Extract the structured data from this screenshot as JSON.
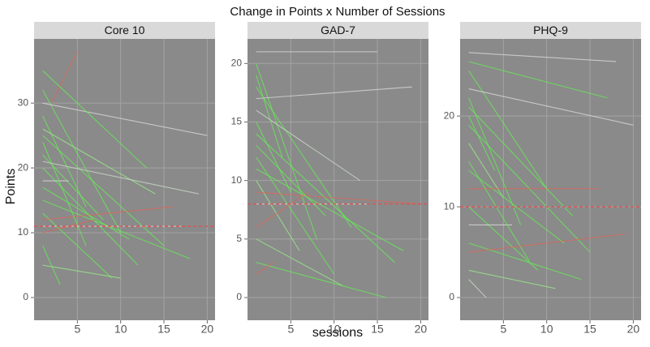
{
  "title": "Change in Points x Number of Sessions",
  "x_label": "sessions",
  "y_label": "Points",
  "chart_data": [
    {
      "type": "line",
      "title": "Core 10",
      "xlim": [
        0,
        20.9
      ],
      "ylim": [
        -3.5,
        39.9
      ],
      "xticks": [
        5,
        10,
        15,
        20
      ],
      "yticks": [
        0,
        10,
        20,
        30
      ],
      "grid": true,
      "threshold": 11,
      "threshold_color": "#e05050",
      "series": [
        {
          "color": "#66ee55",
          "x": [
            1,
            10
          ],
          "values": [
            32,
            10
          ]
        },
        {
          "color": "#66ee55",
          "x": [
            1,
            6
          ],
          "values": [
            28,
            14
          ]
        },
        {
          "color": "#66ee55",
          "x": [
            1,
            15
          ],
          "values": [
            25,
            8
          ]
        },
        {
          "color": "#66ee55",
          "x": [
            1,
            8
          ],
          "values": [
            22,
            12
          ]
        },
        {
          "color": "#dddddd",
          "x": [
            1,
            20
          ],
          "values": [
            30,
            25
          ]
        },
        {
          "color": "#66ee55",
          "x": [
            1,
            12
          ],
          "values": [
            20,
            5
          ]
        },
        {
          "color": "#dddddd",
          "x": [
            1,
            4
          ],
          "values": [
            18,
            18
          ]
        },
        {
          "color": "#66ee55",
          "x": [
            1,
            18
          ],
          "values": [
            15,
            6
          ]
        },
        {
          "color": "#66ee55",
          "x": [
            1,
            9
          ],
          "values": [
            13,
            3
          ]
        },
        {
          "color": "#99ee88",
          "x": [
            1,
            14
          ],
          "values": [
            26,
            16
          ]
        },
        {
          "color": "#dd6655",
          "x": [
            1,
            7
          ],
          "values": [
            10,
            12
          ]
        },
        {
          "color": "#dd6655",
          "x": [
            2,
            5
          ],
          "values": [
            30,
            38
          ]
        },
        {
          "color": "#dd6655",
          "x": [
            1,
            16
          ],
          "values": [
            12,
            14
          ]
        },
        {
          "color": "#66ee55",
          "x": [
            1,
            11
          ],
          "values": [
            17,
            9
          ]
        },
        {
          "color": "#ccddcc",
          "x": [
            1,
            19
          ],
          "values": [
            21,
            16
          ]
        },
        {
          "color": "#66ee55",
          "x": [
            1,
            3
          ],
          "values": [
            8,
            2
          ]
        },
        {
          "color": "#66ee55",
          "x": [
            1,
            13
          ],
          "values": [
            35,
            20
          ]
        },
        {
          "color": "#66ee55",
          "x": [
            1,
            6
          ],
          "values": [
            24,
            8
          ]
        },
        {
          "color": "#dddddd",
          "x": [
            1,
            17
          ],
          "values": [
            11,
            11
          ]
        },
        {
          "color": "#99ee88",
          "x": [
            1,
            10
          ],
          "values": [
            5,
            3
          ]
        }
      ]
    },
    {
      "type": "line",
      "title": "GAD-7",
      "xlim": [
        0,
        20.9
      ],
      "ylim": [
        -1.94,
        22.1
      ],
      "xticks": [
        5,
        10,
        15,
        20
      ],
      "yticks": [
        0,
        5,
        10,
        15,
        20
      ],
      "grid": true,
      "threshold": 8,
      "threshold_color": "#e05050",
      "series": [
        {
          "color": "#dddddd",
          "x": [
            1,
            15
          ],
          "values": [
            21,
            21
          ]
        },
        {
          "color": "#66ee55",
          "x": [
            1,
            8
          ],
          "values": [
            20,
            5
          ]
        },
        {
          "color": "#66ee55",
          "x": [
            1,
            12
          ],
          "values": [
            18,
            6
          ]
        },
        {
          "color": "#66ee55",
          "x": [
            1,
            5
          ],
          "values": [
            15,
            9
          ]
        },
        {
          "color": "#dddddd",
          "x": [
            1,
            19
          ],
          "values": [
            17,
            18
          ]
        },
        {
          "color": "#66ee55",
          "x": [
            1,
            10
          ],
          "values": [
            12,
            2
          ]
        },
        {
          "color": "#99ee88",
          "x": [
            1,
            6
          ],
          "values": [
            10,
            4
          ]
        },
        {
          "color": "#dddddd",
          "x": [
            1,
            14
          ],
          "values": [
            8,
            8
          ]
        },
        {
          "color": "#dd6655",
          "x": [
            1,
            7
          ],
          "values": [
            6,
            9
          ]
        },
        {
          "color": "#66ee55",
          "x": [
            1,
            17
          ],
          "values": [
            14,
            3
          ]
        },
        {
          "color": "#66ee55",
          "x": [
            1,
            4
          ],
          "values": [
            19,
            12
          ]
        },
        {
          "color": "#99ee88",
          "x": [
            1,
            11
          ],
          "values": [
            5,
            1
          ]
        },
        {
          "color": "#66ee55",
          "x": [
            1,
            9
          ],
          "values": [
            13,
            7
          ]
        },
        {
          "color": "#66ee55",
          "x": [
            1,
            16
          ],
          "values": [
            3,
            0
          ]
        },
        {
          "color": "#dd6655",
          "x": [
            1,
            20
          ],
          "values": [
            9,
            8
          ]
        },
        {
          "color": "#ccddcc",
          "x": [
            1,
            13
          ],
          "values": [
            16,
            10
          ]
        },
        {
          "color": "#dd6655",
          "x": [
            1,
            3
          ],
          "values": [
            2,
            3
          ]
        },
        {
          "color": "#66ee55",
          "x": [
            1,
            18
          ],
          "values": [
            11,
            4
          ]
        }
      ]
    },
    {
      "type": "line",
      "title": "PHQ-9",
      "xlim": [
        0,
        20.9
      ],
      "ylim": [
        -2.5,
        28.5
      ],
      "xticks": [
        5,
        10,
        15,
        20
      ],
      "yticks": [
        0,
        10,
        20
      ],
      "grid": true,
      "threshold": 10,
      "threshold_color": "#e05050",
      "series": [
        {
          "color": "#dddddd",
          "x": [
            1,
            18
          ],
          "values": [
            27,
            26
          ]
        },
        {
          "color": "#66ee55",
          "x": [
            1,
            10
          ],
          "values": [
            25,
            12
          ]
        },
        {
          "color": "#66ee55",
          "x": [
            1,
            7
          ],
          "values": [
            22,
            8
          ]
        },
        {
          "color": "#66ee55",
          "x": [
            1,
            15
          ],
          "values": [
            19,
            5
          ]
        },
        {
          "color": "#99ee88",
          "x": [
            1,
            5
          ],
          "values": [
            17,
            11
          ]
        },
        {
          "color": "#66ee55",
          "x": [
            1,
            12
          ],
          "values": [
            14,
            6
          ]
        },
        {
          "color": "#dddddd",
          "x": [
            1,
            20
          ],
          "values": [
            23,
            19
          ]
        },
        {
          "color": "#66ee55",
          "x": [
            1,
            9
          ],
          "values": [
            10,
            3
          ]
        },
        {
          "color": "#dddddd",
          "x": [
            1,
            6
          ],
          "values": [
            8,
            8
          ]
        },
        {
          "color": "#66ee55",
          "x": [
            1,
            14
          ],
          "values": [
            6,
            2
          ]
        },
        {
          "color": "#66ee55",
          "x": [
            1,
            4
          ],
          "values": [
            20,
            14
          ]
        },
        {
          "color": "#dd6655",
          "x": [
            1,
            16
          ],
          "values": [
            12,
            12
          ]
        },
        {
          "color": "#99ee88",
          "x": [
            1,
            11
          ],
          "values": [
            3,
            1
          ]
        },
        {
          "color": "#66ee55",
          "x": [
            1,
            8
          ],
          "values": [
            15,
            4
          ]
        },
        {
          "color": "#dd6655",
          "x": [
            1,
            19
          ],
          "values": [
            5,
            7
          ]
        },
        {
          "color": "#66ee55",
          "x": [
            1,
            13
          ],
          "values": [
            21,
            9
          ]
        },
        {
          "color": "#ccddcc",
          "x": [
            1,
            3
          ],
          "values": [
            2,
            0
          ]
        },
        {
          "color": "#66ee55",
          "x": [
            1,
            17
          ],
          "values": [
            26,
            22
          ]
        }
      ]
    }
  ]
}
